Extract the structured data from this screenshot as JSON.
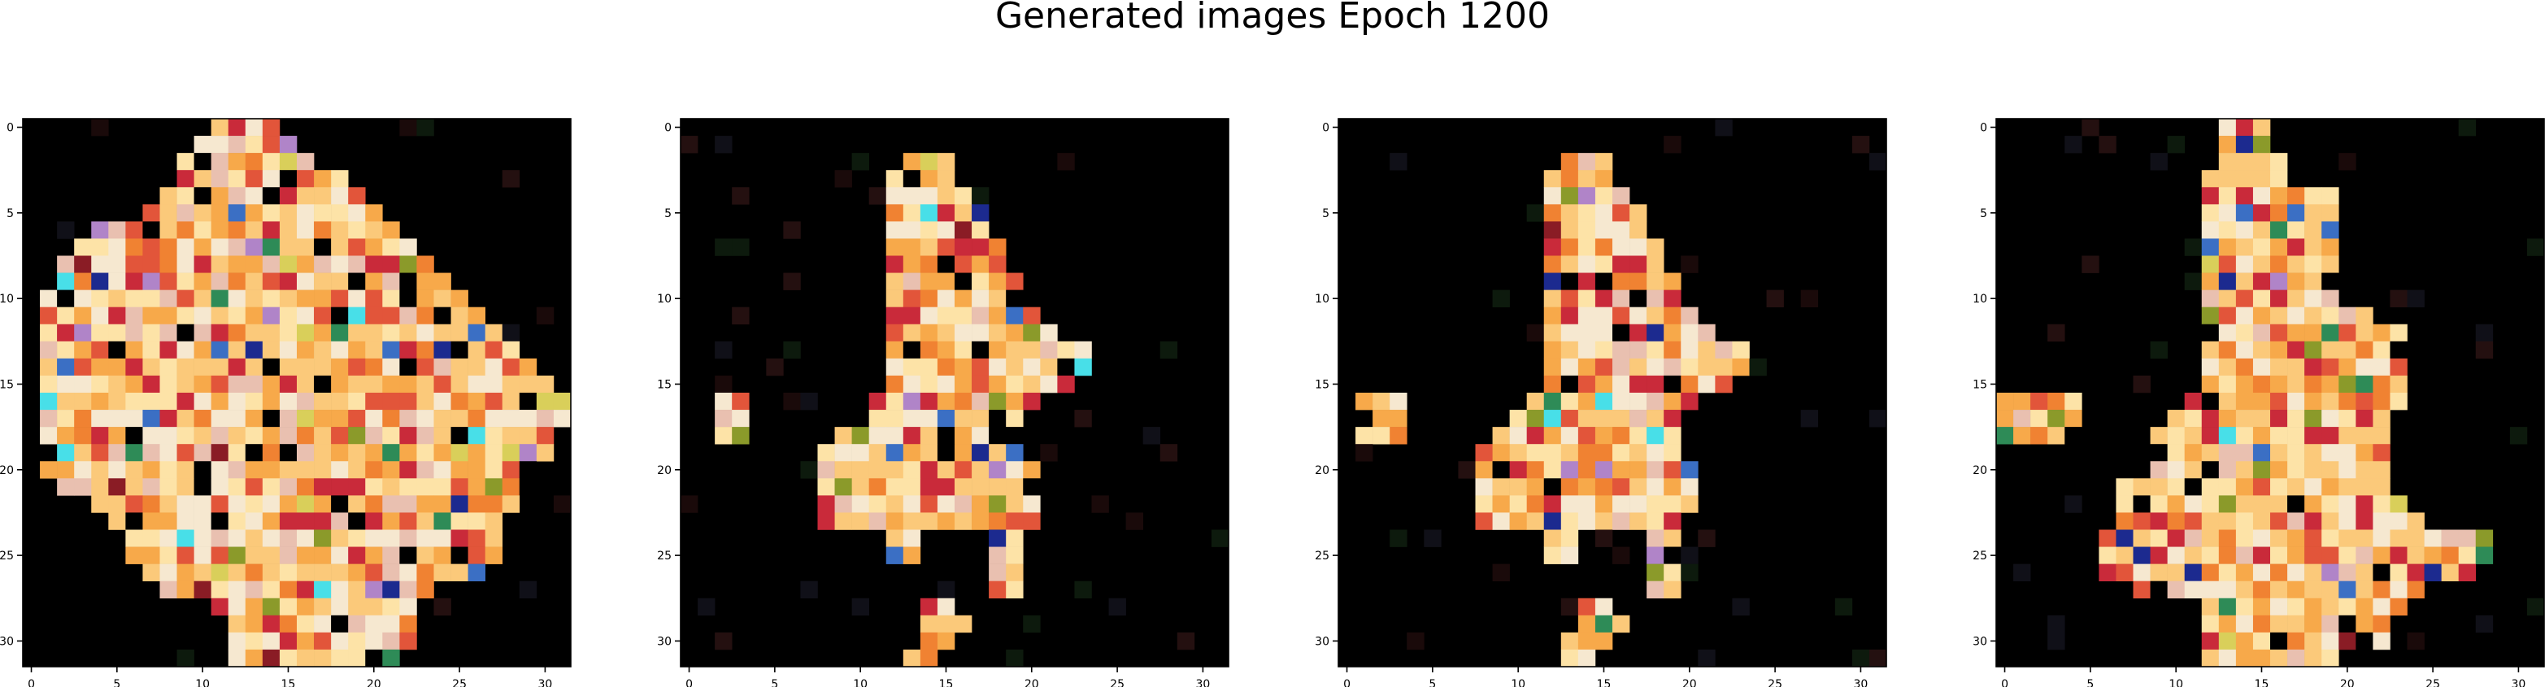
{
  "title": "Generated images Epoch 1200",
  "chart_data": [
    {
      "type": "heatmap",
      "xlim": [
        -0.5,
        31.5
      ],
      "ylim": [
        31.5,
        -0.5
      ],
      "xticks": [
        0,
        5,
        10,
        15,
        20,
        25,
        30
      ],
      "yticks": [
        0,
        5,
        10,
        15,
        20,
        25,
        30
      ]
    },
    {
      "type": "heatmap",
      "xlim": [
        -0.5,
        31.5
      ],
      "ylim": [
        31.5,
        -0.5
      ],
      "xticks": [
        0,
        5,
        10,
        15,
        20,
        25,
        30
      ],
      "yticks": [
        0,
        5,
        10,
        15,
        20,
        25,
        30
      ]
    },
    {
      "type": "heatmap",
      "xlim": [
        -0.5,
        31.5
      ],
      "ylim": [
        31.5,
        -0.5
      ],
      "xticks": [
        0,
        5,
        10,
        15,
        20,
        25,
        30
      ],
      "yticks": [
        0,
        5,
        10,
        15,
        20,
        25,
        30
      ]
    },
    {
      "type": "heatmap",
      "xlim": [
        -0.5,
        31.5
      ],
      "ylim": [
        31.5,
        -0.5
      ],
      "xticks": [
        0,
        5,
        10,
        15,
        20,
        25,
        30
      ],
      "yticks": [
        0,
        5,
        10,
        15,
        20,
        25,
        30
      ]
    }
  ],
  "colors": {
    "background": "#000000",
    "palette": [
      "#fde3a7",
      "#fbc97a",
      "#f7a94a",
      "#f08232",
      "#e2553a",
      "#c92a3a",
      "#8a1c25",
      "#f6e8d0",
      "#e9c0b0",
      "#48dfe8",
      "#1c2a8f",
      "#3b6fc4",
      "#2e8b57",
      "#8b9a2a",
      "#d9cf5a",
      "#b084c8"
    ]
  }
}
